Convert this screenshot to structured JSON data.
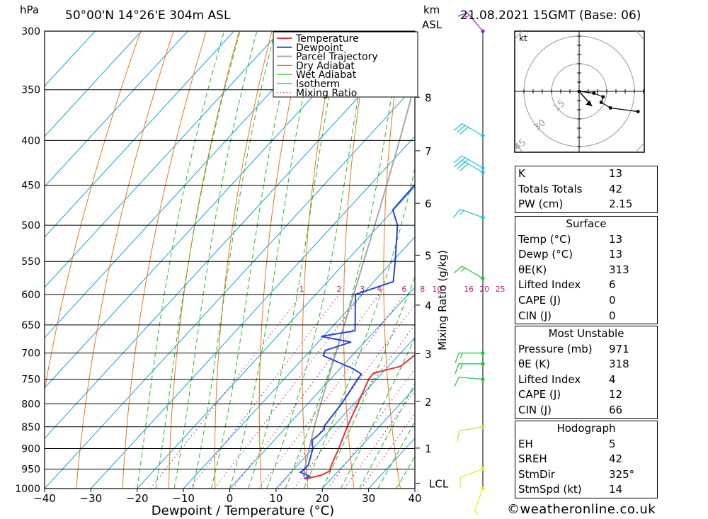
{
  "header": {
    "pressure_unit": "hPa",
    "location": "50°00'N  14°26'E  304m  ASL",
    "km_unit": "km",
    "asl_label": "ASL",
    "datetime": "21.08.2021  15GMT  (Base: 06)"
  },
  "chart_data": {
    "type": "line",
    "subtype": "skew-T log-P sounding",
    "xlabel": "Dewpoint / Temperature (°C)",
    "ylabel": "hPa",
    "secondary_ylabel": "Mixing Ratio (g/kg)",
    "xlim": [
      -40,
      40
    ],
    "ylim": [
      1000,
      300
    ],
    "x_ticks": [
      -40,
      -30,
      -20,
      -10,
      0,
      10,
      20,
      30,
      40
    ],
    "pressure_levels": [
      300,
      350,
      400,
      450,
      500,
      550,
      600,
      650,
      700,
      750,
      800,
      850,
      900,
      950,
      1000
    ],
    "height_km_ticks": [
      {
        "label": "8",
        "p": 357
      },
      {
        "label": "7",
        "p": 411
      },
      {
        "label": "6",
        "p": 472
      },
      {
        "label": "5",
        "p": 541
      },
      {
        "label": "4",
        "p": 617
      },
      {
        "label": "3",
        "p": 701
      },
      {
        "label": "2",
        "p": 795
      },
      {
        "label": "1",
        "p": 899
      },
      {
        "label": "LCL",
        "p": 986
      }
    ],
    "mixing_ratio_labels": [
      "1",
      "2",
      "3",
      "4",
      "6",
      "8",
      "10",
      "16",
      "20",
      "25"
    ],
    "mixing_ratio_values": [
      1,
      2,
      3,
      4,
      6,
      8,
      10,
      16,
      20,
      25
    ],
    "legend": [
      "Temperature",
      "Dewpoint",
      "Parcel Trajectory",
      "Dry Adiabat",
      "Wet Adiabat",
      "Isotherm",
      "Mixing Ratio"
    ],
    "colors": {
      "temperature": "#e8303a",
      "dewpoint": "#2846d8",
      "parcel": "#a8a8a8",
      "dry_adiabat": "#e87820",
      "wet_adiabat": "#28b828",
      "isotherm": "#18a0e0",
      "mixing_ratio": "#c0208c"
    },
    "series": [
      {
        "name": "Temperature",
        "points": [
          [
            975,
            14.5
          ],
          [
            965,
            17.2
          ],
          [
            955,
            18.1
          ],
          [
            940,
            17.3
          ],
          [
            900,
            15.6
          ],
          [
            850,
            13.1
          ],
          [
            800,
            10.8
          ],
          [
            750,
            8.3
          ],
          [
            738,
            8.1
          ],
          [
            725,
            12.6
          ],
          [
            700,
            13.6
          ],
          [
            680,
            13.0
          ],
          [
            670,
            11.8
          ],
          [
            650,
            10.9
          ],
          [
            600,
            6.8
          ],
          [
            550,
            2.3
          ],
          [
            500,
            -3.5
          ],
          [
            480,
            -5.0
          ],
          [
            450,
            -9.1
          ],
          [
            420,
            -12.8
          ],
          [
            400,
            -15.5
          ],
          [
            350,
            -23.8
          ],
          [
            300,
            -33.2
          ]
        ]
      },
      {
        "name": "Dewpoint",
        "points": [
          [
            975,
            14.2
          ],
          [
            968,
            14.8
          ],
          [
            958,
            12.0
          ],
          [
            955,
            12.2
          ],
          [
            940,
            12.3
          ],
          [
            900,
            10.0
          ],
          [
            880,
            8.1
          ],
          [
            870,
            8.5
          ],
          [
            855,
            8.6
          ],
          [
            848,
            8.0
          ],
          [
            800,
            7.3
          ],
          [
            750,
            5.9
          ],
          [
            740,
            5.7
          ],
          [
            730,
            3.0
          ],
          [
            705,
            -6.2
          ],
          [
            695,
            -6.8
          ],
          [
            680,
            -2.9
          ],
          [
            670,
            -10.5
          ],
          [
            660,
            -4.3
          ],
          [
            600,
            -11.4
          ],
          [
            580,
            -5.8
          ],
          [
            550,
            -9.4
          ],
          [
            500,
            -16.1
          ],
          [
            480,
            -20.2
          ],
          [
            450,
            -20.4
          ],
          [
            430,
            -20.5
          ],
          [
            400,
            -23.3
          ],
          [
            370,
            -30.0
          ],
          [
            350,
            -34.5
          ],
          [
            300,
            -42.0
          ]
        ]
      },
      {
        "name": "Parcel Trajectory",
        "points": [
          [
            975,
            14.2
          ],
          [
            950,
            12.3
          ],
          [
            900,
            9.2
          ],
          [
            850,
            6.0
          ],
          [
            800,
            2.8
          ],
          [
            750,
            -0.5
          ],
          [
            700,
            -4.0
          ],
          [
            650,
            -7.8
          ],
          [
            600,
            -11.8
          ],
          [
            550,
            -16.2
          ],
          [
            500,
            -21.0
          ],
          [
            450,
            -26.4
          ],
          [
            400,
            -32.5
          ],
          [
            350,
            -39.6
          ],
          [
            300,
            -47.8
          ]
        ]
      }
    ],
    "winds": [
      {
        "p": 1000,
        "dir": 200,
        "spd": 5
      },
      {
        "p": 950,
        "dir": 250,
        "spd": 10
      },
      {
        "p": 850,
        "dir": 260,
        "spd": 10
      },
      {
        "p": 750,
        "dir": 275,
        "spd": 10
      },
      {
        "p": 720,
        "dir": 270,
        "spd": 15
      },
      {
        "p": 700,
        "dir": 270,
        "spd": 15
      },
      {
        "p": 575,
        "dir": 300,
        "spd": 15
      },
      {
        "p": 490,
        "dir": 290,
        "spd": 15
      },
      {
        "p": 435,
        "dir": 300,
        "spd": 30
      },
      {
        "p": 430,
        "dir": 300,
        "spd": 30
      },
      {
        "p": 395,
        "dir": 300,
        "spd": 30
      },
      {
        "p": 300,
        "dir": 320,
        "spd": 15
      }
    ],
    "hodograph": {
      "unit": "kt",
      "rings": [
        15,
        30,
        45
      ],
      "ring_labels": [
        "15",
        "30",
        "45"
      ],
      "points": [
        [
          0,
          0
        ],
        [
          8,
          -1
        ],
        [
          13,
          -3
        ],
        [
          12,
          -6
        ],
        [
          17,
          -9
        ],
        [
          32,
          -11
        ]
      ]
    }
  },
  "indices": {
    "general": [
      {
        "label": "K",
        "value": "13"
      },
      {
        "label": "Totals Totals",
        "value": "42"
      },
      {
        "label": "PW (cm)",
        "value": "2.15"
      }
    ],
    "surface": {
      "title": "Surface",
      "rows": [
        {
          "label": "Temp (°C)",
          "value": "13"
        },
        {
          "label": "Dewp (°C)",
          "value": "13"
        },
        {
          "label": "θE(K)",
          "value": "313"
        },
        {
          "label": "Lifted Index",
          "value": "6"
        },
        {
          "label": "CAPE (J)",
          "value": "0"
        },
        {
          "label": "CIN (J)",
          "value": "0"
        }
      ]
    },
    "most_unstable": {
      "title": "Most Unstable",
      "rows": [
        {
          "label": "Pressure (mb)",
          "value": "971"
        },
        {
          "label": "θE (K)",
          "value": "318"
        },
        {
          "label": "Lifted Index",
          "value": "4"
        },
        {
          "label": "CAPE (J)",
          "value": "12"
        },
        {
          "label": "CIN (J)",
          "value": "66"
        }
      ]
    },
    "hodograph": {
      "title": "Hodograph",
      "rows": [
        {
          "label": "EH",
          "value": "5"
        },
        {
          "label": "SREH",
          "value": "42"
        },
        {
          "label": "StmDir",
          "value": "325°"
        },
        {
          "label": "StmSpd (kt)",
          "value": "14"
        }
      ]
    }
  },
  "footer": {
    "credit": "©weatheronline.co.uk"
  }
}
